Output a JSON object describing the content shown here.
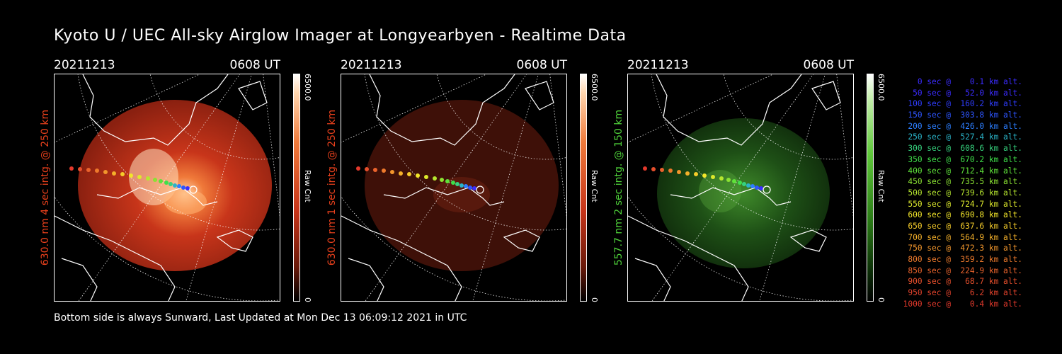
{
  "title": "Kyoto U / UEC All-sky Airglow Imager at Longyearbyen - Realtime Data",
  "footer": "Bottom side is always Sunward, Last Updated at Mon Dec 13 06:09:12 2021 in UTC",
  "panels": [
    {
      "date": "20211213",
      "time": "0608 UT",
      "ylabel": "630.0 nm 4 sec intg. @ 250 km",
      "color": "#e8401c",
      "cbar": {
        "max": "6500.0",
        "min": "0",
        "unit": "Raw Cnt"
      }
    },
    {
      "date": "20211213",
      "time": "0608 UT",
      "ylabel": "630.0 nm 1 sec intg. @ 250 km",
      "color": "#e8401c",
      "cbar": {
        "max": "6500.0",
        "min": "0",
        "unit": "Raw Cnt"
      }
    },
    {
      "date": "20211213",
      "time": "0608 UT",
      "ylabel": "557.7 nm 2 sec intg. @ 150 km",
      "color": "#4fd23a",
      "cbar": {
        "max": "6500.0",
        "min": "0",
        "unit": "Raw Cnt"
      }
    }
  ],
  "legend": [
    {
      "text": "   0 sec @    0.1 km alt.",
      "color": "#3b2cff"
    },
    {
      "text": "  50 sec @   52.0 km alt.",
      "color": "#3b2cff"
    },
    {
      "text": " 100 sec @  160.2 km alt.",
      "color": "#2f3dff"
    },
    {
      "text": " 150 sec @  303.8 km alt.",
      "color": "#2d55ff"
    },
    {
      "text": " 200 sec @  426.0 km alt.",
      "color": "#2c7eff"
    },
    {
      "text": " 250 sec @  527.4 km alt.",
      "color": "#2ab3c8"
    },
    {
      "text": " 300 sec @  608.6 km alt.",
      "color": "#36d27e"
    },
    {
      "text": " 350 sec @  670.2 km alt.",
      "color": "#3fe04a"
    },
    {
      "text": " 400 sec @  712.4 km alt.",
      "color": "#5fe23a"
    },
    {
      "text": " 450 sec @  735.5 km alt.",
      "color": "#8be233"
    },
    {
      "text": " 500 sec @  739.6 km alt.",
      "color": "#b6e62f"
    },
    {
      "text": " 550 sec @  724.7 km alt.",
      "color": "#dde92c"
    },
    {
      "text": " 600 sec @  690.8 km alt.",
      "color": "#f2e52a"
    },
    {
      "text": " 650 sec @  637.6 km alt.",
      "color": "#f5cc2a"
    },
    {
      "text": " 700 sec @  564.9 km alt.",
      "color": "#f4b02a"
    },
    {
      "text": " 750 sec @  472.3 km alt.",
      "color": "#f2962c"
    },
    {
      "text": " 800 sec @  359.2 km alt.",
      "color": "#ee7a2c"
    },
    {
      "text": " 850 sec @  224.9 km alt.",
      "color": "#ea632c"
    },
    {
      "text": " 900 sec @   68.7 km alt.",
      "color": "#e64f2c"
    },
    {
      "text": " 950 sec @    6.2 km alt.",
      "color": "#e4432c"
    },
    {
      "text": "1000 sec @    0.4 km alt.",
      "color": "#e3392c"
    }
  ],
  "icons": {
    "sky-image": "all-sky-airglow-image",
    "coastline": "map-coastline",
    "track": "satellite-track"
  }
}
